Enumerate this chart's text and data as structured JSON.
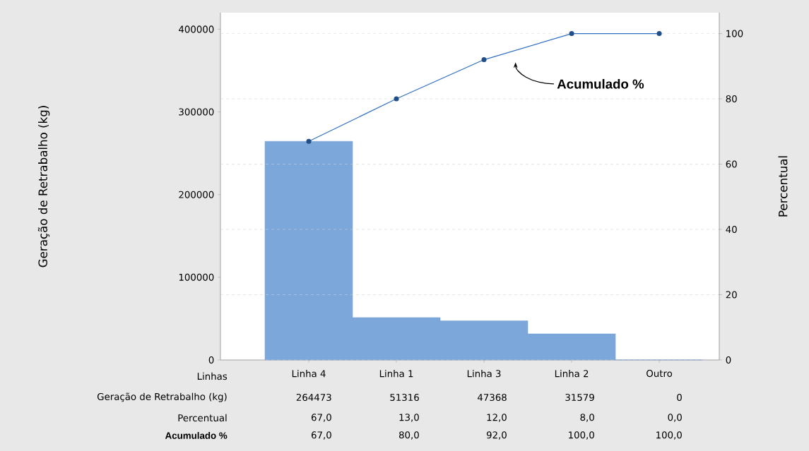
{
  "chart_data": {
    "type": "bar",
    "xlabel": "Linhas",
    "ylabel": "Geração de Retrabalho (kg)",
    "y2label": "Percentual",
    "categories": [
      "Linha 4",
      "Linha 1",
      "Linha 3",
      "Linha 2",
      "Outro"
    ],
    "series": [
      {
        "color": "#7ca7da",
        "values": [
          264473,
          51316,
          47368,
          31579,
          0
        ],
        "value_labels": [
          "264473",
          "51316",
          "47368",
          "31579",
          "0"
        ]
      },
      {
        "name": "Acumulado %",
        "type": "line",
        "axis": "y2",
        "color": "#2f6fc2",
        "values": [
          67.0,
          80.0,
          92.0,
          100.0,
          100.0
        ],
        "value_labels": [
          "67,0",
          "80,0",
          "92,0",
          "100,0",
          "100,0"
        ]
      }
    ],
    "ylim": [
      0,
      420000
    ],
    "yticks": [
      0,
      100000,
      200000,
      300000,
      400000
    ],
    "y2lim": [
      0,
      106.4
    ],
    "y2ticks": [
      0,
      20,
      40,
      60,
      80,
      100
    ],
    "grid": "y2",
    "marker": "circle",
    "annotations": [
      "Percentual",
      "67,0",
      "13,0",
      "12,0",
      "8,0",
      "0,0"
    ]
  }
}
